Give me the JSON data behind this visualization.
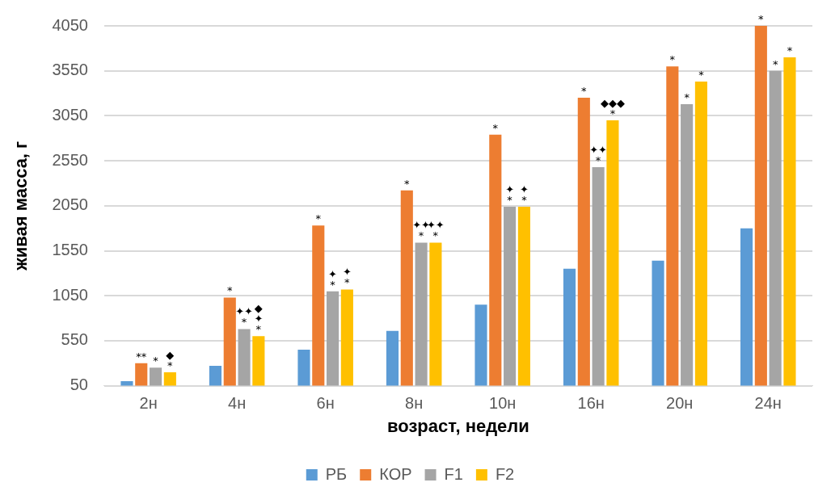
{
  "chart_data": {
    "type": "bar",
    "xlabel": "возраст, недели",
    "ylabel": "живая масса, г",
    "categories": [
      "2н",
      "4н",
      "6н",
      "8н",
      "10н",
      "16н",
      "20н",
      "24н"
    ],
    "series": [
      {
        "name": "РБ",
        "color": "#5b9bd5",
        "values": [
          100,
          270,
          450,
          660,
          950,
          1350,
          1440,
          1800
        ]
      },
      {
        "name": "КОР",
        "color": "#ed7d31",
        "values": [
          300,
          1030,
          1830,
          2220,
          2840,
          3250,
          3600,
          4050
        ],
        "value_labels": [
          "**",
          "*",
          "*",
          "*",
          "*",
          "*",
          "*",
          "*"
        ]
      },
      {
        "name": "F1",
        "color": "#a5a5a5",
        "values": [
          250,
          680,
          1100,
          1640,
          2040,
          2480,
          3180,
          3550
        ],
        "value_labels": [
          "*",
          "✦✦\n*",
          "✦\n*",
          "✦✦\n*",
          "✦\n*",
          "✦✦\n*",
          "*",
          "*"
        ]
      },
      {
        "name": "F2",
        "color": "#ffc000",
        "values": [
          200,
          600,
          1120,
          1640,
          2040,
          3000,
          3430,
          3700
        ],
        "value_labels": [
          "◆\n*",
          "◆\n✦\n*",
          "✦\n*",
          "✦✦\n*",
          "✦\n*",
          "◆◆◆\n*",
          "*",
          "*"
        ]
      }
    ],
    "ylim": [
      50,
      4050
    ],
    "yticks": [
      50,
      550,
      1050,
      1550,
      2050,
      2550,
      3050,
      3550,
      4050
    ],
    "grid": "y",
    "legend": "bottom"
  }
}
